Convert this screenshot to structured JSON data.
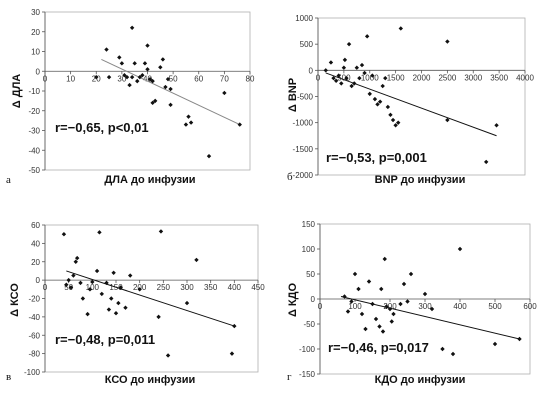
{
  "chart_data": [
    {
      "type": "scatter",
      "panel_letter": "а",
      "xlabel": "ДЛА до инфузии",
      "ylabel": "Δ ДЛА",
      "annotation": "r=−0,65, p<0,01",
      "xlim": [
        0,
        80
      ],
      "ylim": [
        -50,
        30
      ],
      "xticks": [
        "0",
        "10",
        "20",
        "30",
        "40",
        "50",
        "60",
        "70",
        "80"
      ],
      "yticks": [
        "30",
        "20",
        "10",
        "0",
        "-10",
        "-20",
        "-30",
        "-40",
        "-50"
      ],
      "points": [
        [
          20,
          -3
        ],
        [
          24,
          11
        ],
        [
          25,
          -3
        ],
        [
          29,
          7
        ],
        [
          30,
          4
        ],
        [
          31,
          -2
        ],
        [
          32,
          -3
        ],
        [
          33,
          -7
        ],
        [
          34,
          -3
        ],
        [
          34,
          22
        ],
        [
          35,
          4
        ],
        [
          36,
          -5
        ],
        [
          37,
          -3
        ],
        [
          38,
          -2
        ],
        [
          39,
          4
        ],
        [
          40,
          1
        ],
        [
          40,
          13
        ],
        [
          41,
          -4
        ],
        [
          42,
          -5
        ],
        [
          42,
          -16
        ],
        [
          43,
          -15
        ],
        [
          45,
          2
        ],
        [
          46,
          6
        ],
        [
          47,
          -8
        ],
        [
          48,
          -4
        ],
        [
          49,
          -9
        ],
        [
          49,
          -17
        ],
        [
          55,
          -27
        ],
        [
          56,
          -23
        ],
        [
          57,
          -26
        ],
        [
          64,
          -43
        ],
        [
          70,
          -11
        ],
        [
          76,
          -27
        ]
      ],
      "trend": [
        [
          22,
          6
        ],
        [
          76,
          -27
        ]
      ]
    },
    {
      "type": "scatter",
      "panel_letter": "б",
      "xlabel": "BNP до инфузии",
      "ylabel": "Δ BNP",
      "annotation": "r=−0,53, p=0,001",
      "xlim": [
        0,
        4000
      ],
      "ylim": [
        -2000,
        1000
      ],
      "xticks": [
        "0",
        "500",
        "1000",
        "1500",
        "2000",
        "2500",
        "3000",
        "3500",
        "4000"
      ],
      "yticks": [
        "1000",
        "500",
        "0",
        "-500",
        "-1000",
        "-1500",
        "-2000"
      ],
      "points": [
        [
          150,
          0
        ],
        [
          250,
          150
        ],
        [
          300,
          -150
        ],
        [
          350,
          -200
        ],
        [
          400,
          -100
        ],
        [
          450,
          -250
        ],
        [
          500,
          50
        ],
        [
          520,
          200
        ],
        [
          550,
          -150
        ],
        [
          600,
          500
        ],
        [
          650,
          -300
        ],
        [
          700,
          -250
        ],
        [
          750,
          50
        ],
        [
          800,
          -150
        ],
        [
          850,
          100
        ],
        [
          900,
          -50
        ],
        [
          950,
          650
        ],
        [
          1000,
          -450
        ],
        [
          1050,
          -100
        ],
        [
          1100,
          -550
        ],
        [
          1150,
          -650
        ],
        [
          1200,
          -600
        ],
        [
          1250,
          -300
        ],
        [
          1300,
          -150
        ],
        [
          1350,
          -700
        ],
        [
          1400,
          -850
        ],
        [
          1450,
          -950
        ],
        [
          1500,
          -1050
        ],
        [
          1550,
          -1000
        ],
        [
          1600,
          800
        ],
        [
          2500,
          550
        ],
        [
          2500,
          -950
        ],
        [
          3250,
          -1750
        ],
        [
          3450,
          -1050
        ]
      ],
      "trend": [
        [
          150,
          -50
        ],
        [
          3450,
          -1250
        ]
      ]
    },
    {
      "type": "scatter",
      "panel_letter": "в",
      "xlabel": "КСО до инфузии",
      "ylabel": "Δ КСО",
      "annotation": "r=−0,48, p=0,011",
      "xlim": [
        0,
        450
      ],
      "ylim": [
        -100,
        60
      ],
      "xticks": [
        "0",
        "50",
        "100",
        "150",
        "200",
        "250",
        "300",
        "350",
        "400",
        "450"
      ],
      "yticks": [
        "60",
        "40",
        "20",
        "0",
        "-20",
        "-40",
        "-60",
        "-80",
        "-100"
      ],
      "points": [
        [
          40,
          50
        ],
        [
          45,
          -5
        ],
        [
          50,
          0
        ],
        [
          55,
          -8
        ],
        [
          60,
          5
        ],
        [
          65,
          20
        ],
        [
          68,
          24
        ],
        [
          75,
          -3
        ],
        [
          80,
          -20
        ],
        [
          90,
          -37
        ],
        [
          95,
          -10
        ],
        [
          100,
          -2
        ],
        [
          110,
          10
        ],
        [
          115,
          52
        ],
        [
          120,
          -15
        ],
        [
          130,
          -3
        ],
        [
          135,
          -32
        ],
        [
          140,
          -20
        ],
        [
          145,
          8
        ],
        [
          150,
          -36
        ],
        [
          155,
          -25
        ],
        [
          160,
          -8
        ],
        [
          170,
          -30
        ],
        [
          180,
          5
        ],
        [
          200,
          -10
        ],
        [
          240,
          -40
        ],
        [
          245,
          53
        ],
        [
          260,
          -82
        ],
        [
          300,
          -25
        ],
        [
          320,
          22
        ],
        [
          395,
          -80
        ],
        [
          400,
          -50
        ]
      ],
      "trend": [
        [
          45,
          10
        ],
        [
          400,
          -50
        ]
      ]
    },
    {
      "type": "scatter",
      "panel_letter": "г",
      "xlabel": "КДО до инфузии",
      "ylabel": "Δ КДО",
      "annotation": "r=−0,46, p=0,017",
      "xlim": [
        0,
        600
      ],
      "ylim": [
        -150,
        150
      ],
      "xticks": [
        "0",
        "100",
        "200",
        "300",
        "400",
        "500",
        "600"
      ],
      "yticks": [
        "150",
        "100",
        "50",
        "0",
        "-50",
        "-100",
        "-150"
      ],
      "points": [
        [
          70,
          5
        ],
        [
          80,
          -25
        ],
        [
          90,
          -5
        ],
        [
          100,
          50
        ],
        [
          110,
          20
        ],
        [
          120,
          -30
        ],
        [
          130,
          -60
        ],
        [
          140,
          35
        ],
        [
          150,
          -10
        ],
        [
          160,
          -40
        ],
        [
          170,
          -55
        ],
        [
          175,
          20
        ],
        [
          180,
          -65
        ],
        [
          185,
          80
        ],
        [
          190,
          -15
        ],
        [
          200,
          -20
        ],
        [
          205,
          -45
        ],
        [
          210,
          -30
        ],
        [
          230,
          -10
        ],
        [
          240,
          30
        ],
        [
          250,
          -5
        ],
        [
          260,
          50
        ],
        [
          300,
          10
        ],
        [
          320,
          -20
        ],
        [
          380,
          -110
        ],
        [
          400,
          100
        ],
        [
          500,
          -90
        ],
        [
          570,
          -80
        ],
        [
          350,
          -100
        ]
      ],
      "trend": [
        [
          60,
          5
        ],
        [
          570,
          -80
        ]
      ]
    }
  ]
}
